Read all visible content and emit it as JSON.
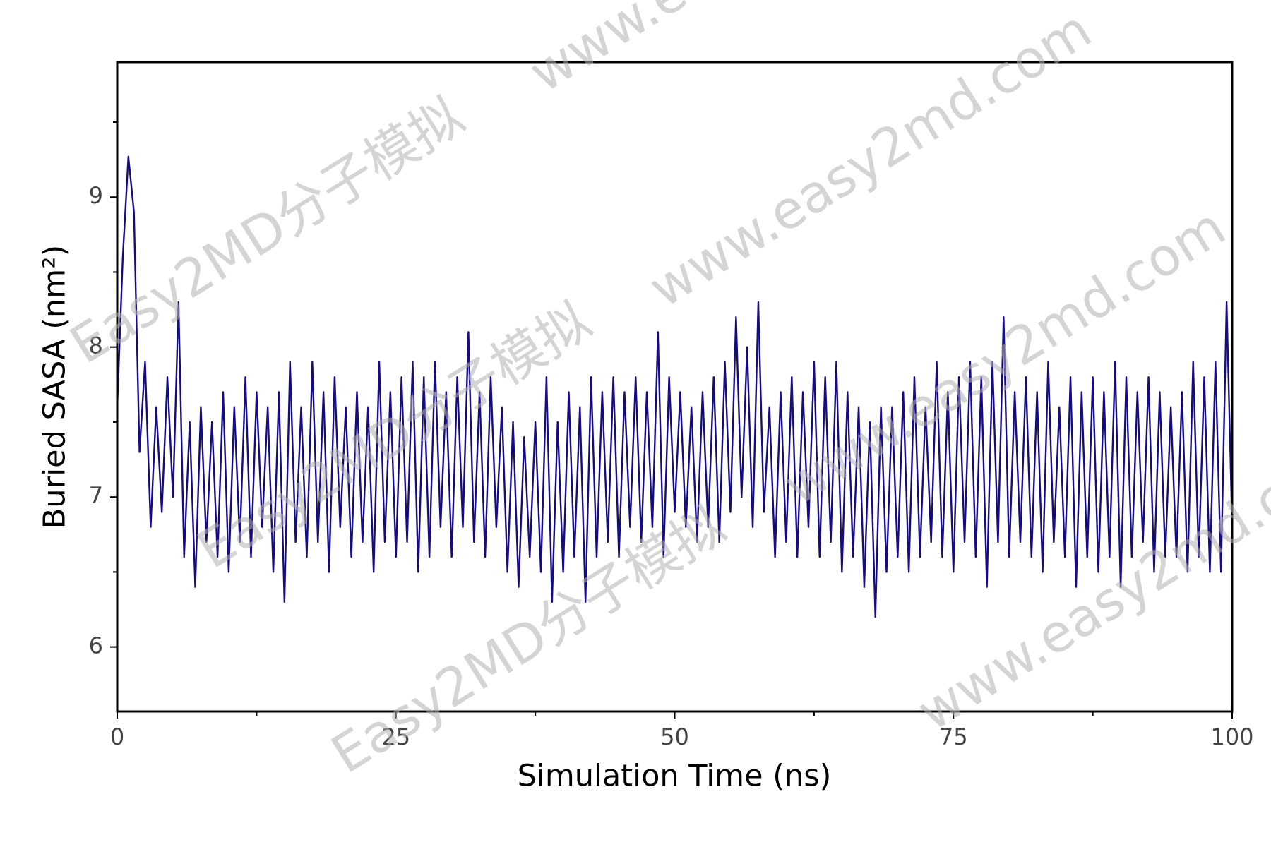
{
  "chart_data": {
    "type": "line",
    "xlabel": "Simulation Time (ns)",
    "ylabel": "Buried SASA (nm²)",
    "watermarks": [
      "Easy2MD分子模拟",
      "www.easy2md.com"
    ],
    "color": "#150c84",
    "xlim": [
      0,
      100
    ],
    "xticks": [
      0,
      25,
      50,
      75,
      100
    ],
    "xminorticks": [
      12.5,
      37.5,
      62.5,
      87.5
    ],
    "ylim": [
      5.57,
      9.9
    ],
    "yticks": [
      6,
      7,
      8,
      9
    ],
    "yminorticks": [
      6.5,
      7.5,
      8.5,
      9.5
    ],
    "x": [
      0,
      0.5,
      1,
      1.5,
      2,
      2.5,
      3,
      3.5,
      4,
      4.5,
      5,
      5.5,
      6,
      6.5,
      7,
      7.5,
      8,
      8.5,
      9,
      9.5,
      10,
      10.5,
      11,
      11.5,
      12,
      12.5,
      13,
      13.5,
      14,
      14.5,
      15,
      15.5,
      16,
      16.5,
      17,
      17.5,
      18,
      18.5,
      19,
      19.5,
      20,
      20.5,
      21,
      21.5,
      22,
      22.5,
      23,
      23.5,
      24,
      24.5,
      25,
      25.5,
      26,
      26.5,
      27,
      27.5,
      28,
      28.5,
      29,
      29.5,
      30,
      30.5,
      31,
      31.5,
      32,
      32.5,
      33,
      33.5,
      34,
      34.5,
      35,
      35.5,
      36,
      36.5,
      37,
      37.5,
      38,
      38.5,
      39,
      39.5,
      40,
      40.5,
      41,
      41.5,
      42,
      42.5,
      43,
      43.5,
      44,
      44.5,
      45,
      45.5,
      46,
      46.5,
      47,
      47.5,
      48,
      48.5,
      49,
      49.5,
      50,
      50.5,
      51,
      51.5,
      52,
      52.5,
      53,
      53.5,
      54,
      54.5,
      55,
      55.5,
      56,
      56.5,
      57,
      57.5,
      58,
      58.5,
      59,
      59.5,
      60,
      60.5,
      61,
      61.5,
      62,
      62.5,
      63,
      63.5,
      64,
      64.5,
      65,
      65.5,
      66,
      66.5,
      67,
      67.5,
      68,
      68.5,
      69,
      69.5,
      70,
      70.5,
      71,
      71.5,
      72,
      72.5,
      73,
      73.5,
      74,
      74.5,
      75,
      75.5,
      76,
      76.5,
      77,
      77.5,
      78,
      78.5,
      79,
      79.5,
      80,
      80.5,
      81,
      81.5,
      82,
      82.5,
      83,
      83.5,
      84,
      84.5,
      85,
      85.5,
      86,
      86.5,
      87,
      87.5,
      88,
      88.5,
      89,
      89.5,
      90,
      90.5,
      91,
      91.5,
      92,
      92.5,
      93,
      93.5,
      94,
      94.5,
      95,
      95.5,
      96,
      96.5,
      97,
      97.5,
      98,
      98.5,
      99,
      99.5,
      100
    ],
    "values": [
      7.6,
      8.6,
      9.27,
      8.9,
      7.3,
      7.9,
      6.8,
      7.6,
      6.9,
      7.8,
      7.0,
      8.3,
      6.6,
      7.5,
      6.4,
      7.6,
      6.7,
      7.5,
      6.6,
      7.7,
      6.5,
      7.6,
      6.7,
      7.8,
      6.6,
      7.7,
      6.8,
      7.6,
      6.5,
      7.7,
      6.3,
      7.9,
      6.7,
      7.6,
      6.6,
      7.9,
      6.7,
      7.7,
      6.5,
      7.8,
      6.8,
      7.6,
      6.6,
      7.7,
      6.7,
      7.6,
      6.5,
      7.9,
      6.7,
      7.7,
      6.6,
      7.8,
      6.7,
      7.9,
      6.5,
      7.8,
      6.6,
      7.9,
      6.8,
      7.7,
      6.6,
      7.8,
      6.8,
      8.1,
      6.7,
      7.7,
      6.6,
      7.8,
      6.8,
      7.6,
      6.5,
      7.5,
      6.4,
      7.4,
      6.6,
      7.5,
      6.5,
      7.8,
      6.3,
      7.5,
      6.5,
      7.7,
      6.6,
      7.6,
      6.3,
      7.8,
      6.6,
      7.7,
      6.7,
      7.8,
      6.6,
      7.7,
      6.8,
      7.8,
      6.7,
      7.7,
      6.8,
      8.1,
      6.6,
      7.8,
      6.9,
      7.7,
      6.8,
      7.6,
      6.7,
      7.7,
      6.8,
      7.8,
      6.7,
      7.9,
      6.9,
      8.2,
      7.0,
      8.0,
      6.8,
      8.3,
      6.9,
      7.6,
      6.6,
      7.7,
      6.7,
      7.8,
      6.6,
      7.7,
      6.8,
      7.9,
      6.6,
      7.8,
      6.7,
      7.9,
      6.5,
      7.7,
      6.6,
      7.6,
      6.4,
      7.5,
      6.2,
      7.6,
      6.5,
      7.6,
      6.6,
      7.7,
      6.5,
      7.8,
      6.6,
      7.6,
      6.7,
      7.9,
      6.6,
      7.7,
      6.5,
      7.8,
      6.7,
      7.9,
      6.6,
      7.8,
      6.4,
      7.9,
      6.7,
      8.2,
      6.6,
      7.7,
      6.7,
      7.8,
      6.6,
      7.7,
      6.5,
      7.9,
      6.7,
      7.6,
      6.6,
      7.8,
      6.4,
      7.7,
      6.6,
      7.8,
      6.5,
      7.7,
      6.6,
      7.9,
      6.4,
      7.8,
      6.6,
      7.7,
      6.7,
      7.8,
      6.5,
      7.7,
      6.6,
      7.6,
      6.6,
      7.7,
      6.5,
      7.9,
      6.6,
      7.8,
      6.5,
      7.9,
      6.5,
      8.3,
      6.8
    ]
  }
}
